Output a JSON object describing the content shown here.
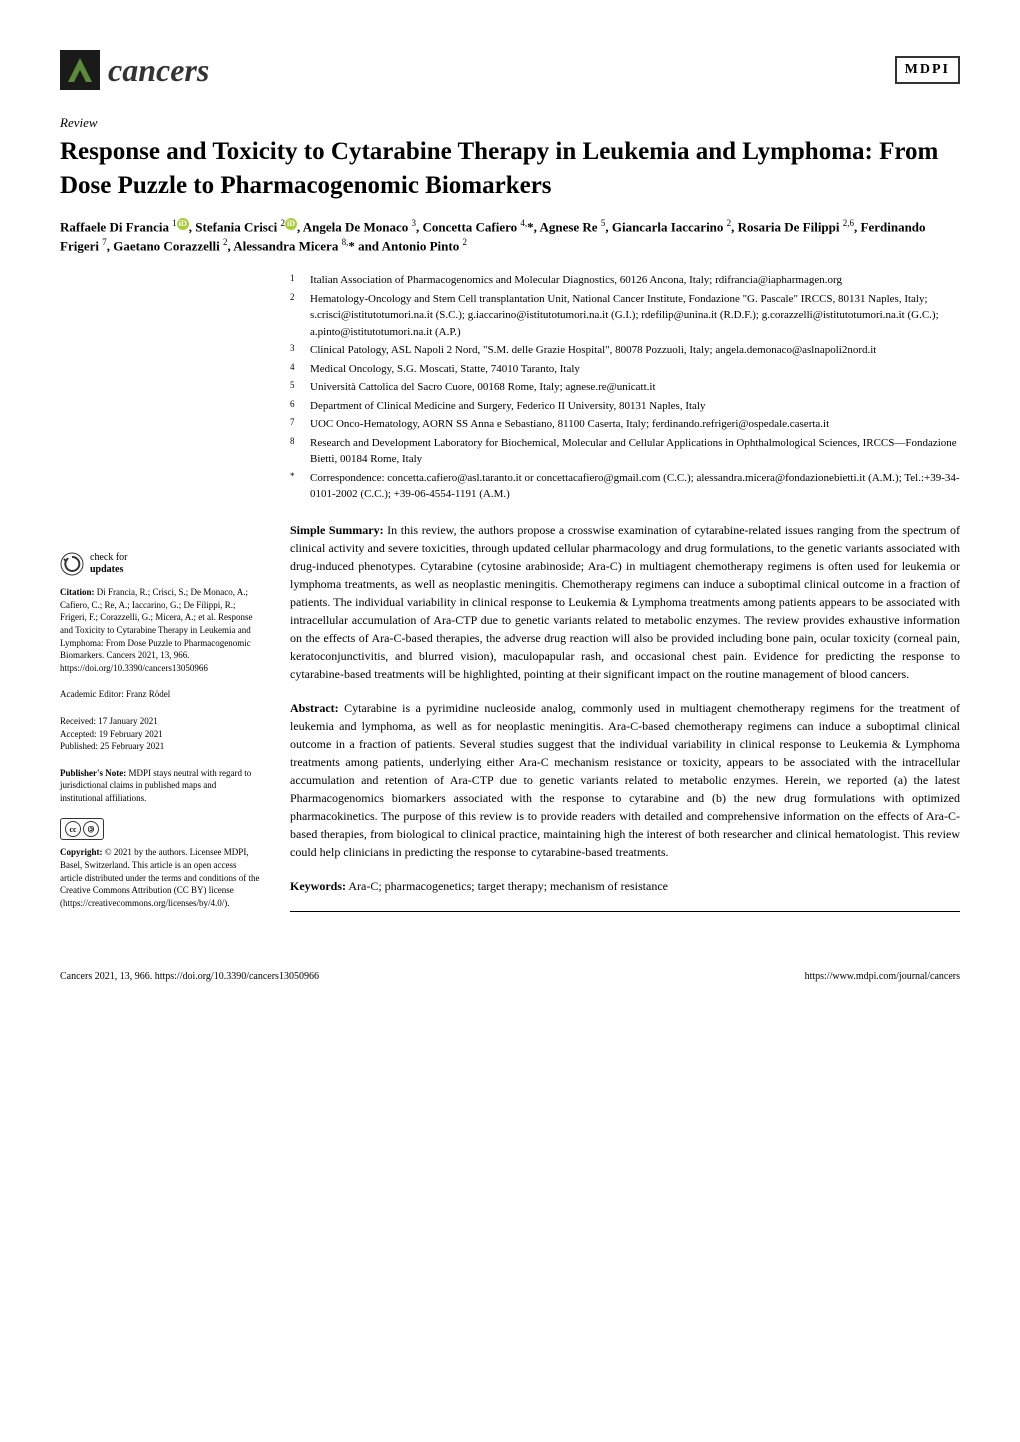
{
  "journal": {
    "name": "cancers",
    "publisher": "MDPI"
  },
  "article_type": "Review",
  "title": "Response and Toxicity to Cytarabine Therapy in Leukemia and Lymphoma: From Dose Puzzle to Pharmacogenomic Biomarkers",
  "authors_html": "Raffaele Di Francia <sup>1</sup><span class='orcid'>iD</span>, Stefania Crisci <sup>2</sup><span class='orcid'>iD</span>, Angela De Monaco <sup>3</sup>, Concetta Cafiero <sup>4,</sup>*, Agnese Re <sup>5</sup>, Giancarla Iaccarino <sup>2</sup>, Rosaria De Filippi <sup>2,6</sup>, Ferdinando Frigeri <sup>7</sup>, Gaetano Corazzelli <sup>2</sup>, Alessandra Micera <sup>8,</sup>* and Antonio Pinto <sup>2</sup>",
  "affiliations": [
    {
      "num": "1",
      "text": "Italian Association of Pharmacogenomics and Molecular Diagnostics, 60126 Ancona, Italy; rdifrancia@iapharmagen.org"
    },
    {
      "num": "2",
      "text": "Hematology-Oncology and Stem Cell transplantation Unit, National Cancer Institute, Fondazione \"G. Pascale\" IRCCS, 80131 Naples, Italy; s.crisci@istitutotumori.na.it (S.C.); g.iaccarino@istitutotumori.na.it (G.I.); rdefilip@unina.it (R.D.F.); g.corazzelli@istitutotumori.na.it (G.C.); a.pinto@istitutotumori.na.it (A.P.)"
    },
    {
      "num": "3",
      "text": "Clinical Patology, ASL Napoli 2 Nord, \"S.M. delle Grazie Hospital\", 80078 Pozzuoli, Italy; angela.demonaco@aslnapoli2nord.it"
    },
    {
      "num": "4",
      "text": "Medical Oncology, S.G. Moscati, Statte, 74010 Taranto, Italy"
    },
    {
      "num": "5",
      "text": "Università Cattolica del Sacro Cuore, 00168 Rome, Italy; agnese.re@unicatt.it"
    },
    {
      "num": "6",
      "text": "Department of Clinical Medicine and Surgery, Federico II University, 80131 Naples, Italy"
    },
    {
      "num": "7",
      "text": "UOC Onco-Hematology, AORN SS Anna e Sebastiano, 81100 Caserta, Italy; ferdinando.refrigeri@ospedale.caserta.it"
    },
    {
      "num": "8",
      "text": "Research and Development Laboratory for Biochemical, Molecular and Cellular Applications in Ophthalmological Sciences, IRCCS—Fondazione Bietti, 00184 Rome, Italy"
    },
    {
      "num": "*",
      "text": "Correspondence: concetta.cafiero@asl.taranto.it or concettacafiero@gmail.com (C.C.); alessandra.micera@fondazionebietti.it (A.M.); Tel.:+39-34-0101-2002 (C.C.); +39-06-4554-1191 (A.M.)"
    }
  ],
  "simple_summary_label": "Simple Summary:",
  "simple_summary": " In this review, the authors propose a crosswise examination of cytarabine-related issues ranging from the spectrum of clinical activity and severe toxicities, through updated cellular pharmacology and drug formulations, to the genetic variants associated with drug-induced phenotypes. Cytarabine (cytosine arabinoside; Ara-C) in multiagent chemotherapy regimens is often used for leukemia or lymphoma treatments, as well as neoplastic meningitis. Chemotherapy regimens can induce a suboptimal clinical outcome in a fraction of patients. The individual variability in clinical response to Leukemia & Lymphoma treatments among patients appears to be associated with intracellular accumulation of Ara-CTP due to genetic variants related to metabolic enzymes. The review provides exhaustive information on the effects of Ara-C-based therapies, the adverse drug reaction will also be provided including bone pain, ocular toxicity (corneal pain, keratoconjunctivitis, and blurred vision), maculopapular rash, and occasional chest pain. Evidence for predicting the response to cytarabine-based treatments will be highlighted, pointing at their significant impact on the routine management of blood cancers.",
  "abstract_label": "Abstract:",
  "abstract": " Cytarabine is a pyrimidine nucleoside analog, commonly used in multiagent chemotherapy regimens for the treatment of leukemia and lymphoma, as well as for neoplastic meningitis. Ara-C-based chemotherapy regimens can induce a suboptimal clinical outcome in a fraction of patients. Several studies suggest that the individual variability in clinical response to Leukemia & Lymphoma treatments among patients, underlying either Ara-C mechanism resistance or toxicity, appears to be associated with the intracellular accumulation and retention of Ara-CTP due to genetic variants related to metabolic enzymes. Herein, we reported (a) the latest Pharmacogenomics biomarkers associated with the response to cytarabine and (b) the new drug formulations with optimized pharmacokinetics. The purpose of this review is to provide readers with detailed and comprehensive information on the effects of Ara-C-based therapies, from biological to clinical practice, maintaining high the interest of both researcher and clinical hematologist. This review could help clinicians in predicting the response to cytarabine-based treatments.",
  "keywords_label": "Keywords:",
  "keywords": " Ara-C; pharmacogenetics; target therapy; mechanism of resistance",
  "sidebar": {
    "check_updates": "check for updates",
    "citation_label": "Citation:",
    "citation": " Di Francia, R.; Crisci, S.; De Monaco, A.; Cafiero, C.; Re, A.; Iaccarino, G.; De Filippi, R.; Frigeri, F.; Corazzelli, G.; Micera, A.; et al. Response and Toxicity to Cytarabine Therapy in Leukemia and Lymphoma: From Dose Puzzle to Pharmacogenomic Biomarkers. Cancers 2021, 13, 966. https://doi.org/10.3390/cancers13050966",
    "editor_label": "Academic Editor: ",
    "editor": "Franz Rödel",
    "received": "Received: 17 January 2021",
    "accepted": "Accepted: 19 February 2021",
    "published": "Published: 25 February 2021",
    "note_label": "Publisher's Note:",
    "note": " MDPI stays neutral with regard to jurisdictional claims in published maps and institutional affiliations.",
    "copyright_label": "Copyright:",
    "copyright": " © 2021 by the authors. Licensee MDPI, Basel, Switzerland. This article is an open access article distributed under the terms and conditions of the Creative Commons Attribution (CC BY) license (https://creativecommons.org/licenses/by/4.0/)."
  },
  "footer": {
    "left": "Cancers 2021, 13, 966. https://doi.org/10.3390/cancers13050966",
    "right": "https://www.mdpi.com/journal/cancers"
  }
}
